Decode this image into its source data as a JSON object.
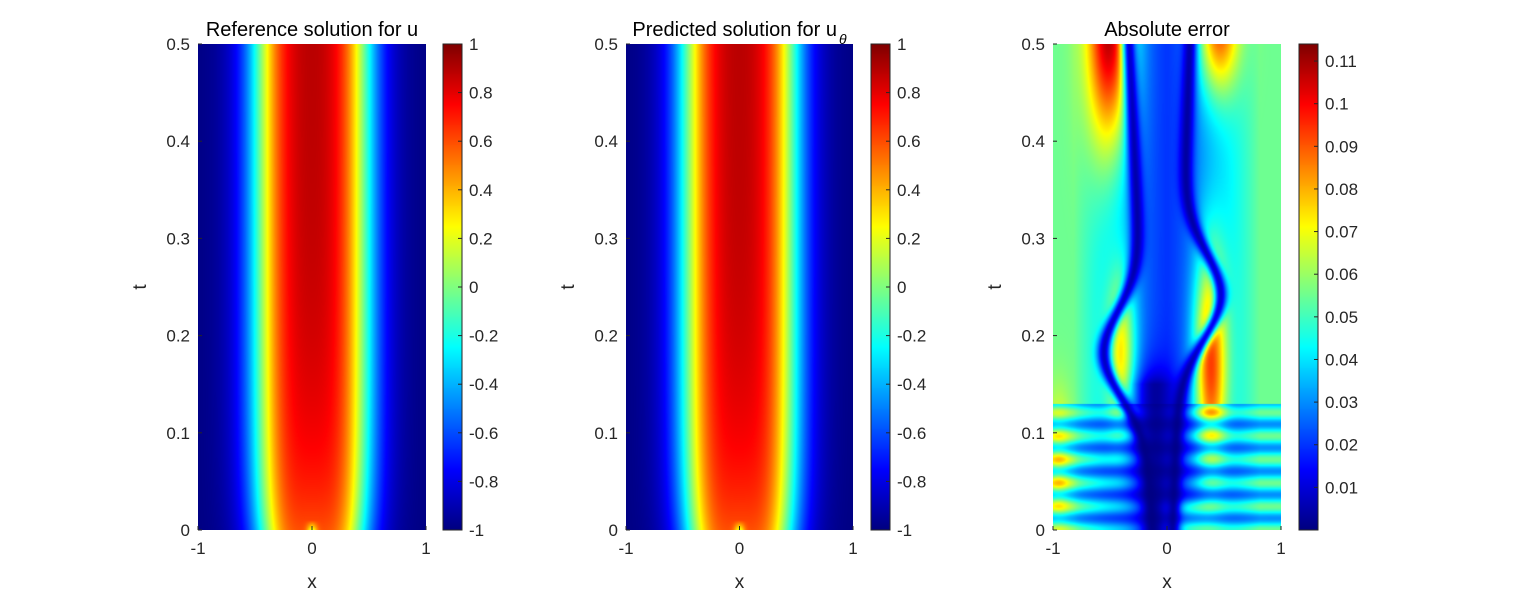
{
  "chart_data": [
    {
      "type": "heatmap",
      "title": "Reference solution for u",
      "title_sub": "",
      "xlabel": "x",
      "ylabel": "t",
      "xlim": [
        -1,
        1
      ],
      "ylim": [
        0,
        0.5
      ],
      "xticks": [
        "-1",
        "0",
        "1"
      ],
      "yticks": [
        "0",
        "0.1",
        "0.2",
        "0.3",
        "0.4",
        "0.5"
      ],
      "field": "solution",
      "colormap": "jet",
      "colorbar": {
        "min": -1,
        "max": 1,
        "ticks": [
          -1,
          -0.8,
          -0.6,
          -0.4,
          -0.2,
          0,
          0.2,
          0.4,
          0.6,
          0.8,
          1
        ],
        "tick_labels": [
          "-1",
          "-0.8",
          "-0.6",
          "-0.4",
          "-0.2",
          "0",
          "0.2",
          "0.4",
          "0.6",
          "0.8",
          "1"
        ]
      }
    },
    {
      "type": "heatmap",
      "title": "Predicted solution for u",
      "title_sub": "θ",
      "xlabel": "x",
      "ylabel": "t",
      "xlim": [
        -1,
        1
      ],
      "ylim": [
        0,
        0.5
      ],
      "xticks": [
        "-1",
        "0",
        "1"
      ],
      "yticks": [
        "0",
        "0.1",
        "0.2",
        "0.3",
        "0.4",
        "0.5"
      ],
      "field": "solution",
      "colormap": "jet",
      "colorbar": {
        "min": -1,
        "max": 1,
        "ticks": [
          -1,
          -0.8,
          -0.6,
          -0.4,
          -0.2,
          0,
          0.2,
          0.4,
          0.6,
          0.8,
          1
        ],
        "tick_labels": [
          "-1",
          "-0.8",
          "-0.6",
          "-0.4",
          "-0.2",
          "0",
          "0.2",
          "0.4",
          "0.6",
          "0.8",
          "1"
        ]
      }
    },
    {
      "type": "heatmap",
      "title": "Absolute error",
      "title_sub": "",
      "xlabel": "x",
      "ylabel": "t",
      "xlim": [
        -1,
        1
      ],
      "ylim": [
        0,
        0.5
      ],
      "xticks": [
        "-1",
        "0",
        "1"
      ],
      "yticks": [
        "0",
        "0.1",
        "0.2",
        "0.3",
        "0.4",
        "0.5"
      ],
      "field": "error",
      "colormap": "jet",
      "colorbar": {
        "min": 0,
        "max": 0.114,
        "ticks": [
          0.01,
          0.02,
          0.03,
          0.04,
          0.05,
          0.06,
          0.07,
          0.08,
          0.09,
          0.1,
          0.11
        ],
        "tick_labels": [
          "0.01",
          "0.02",
          "0.03",
          "0.04",
          "0.05",
          "0.06",
          "0.07",
          "0.08",
          "0.09",
          "0.1",
          "0.11"
        ]
      }
    }
  ]
}
